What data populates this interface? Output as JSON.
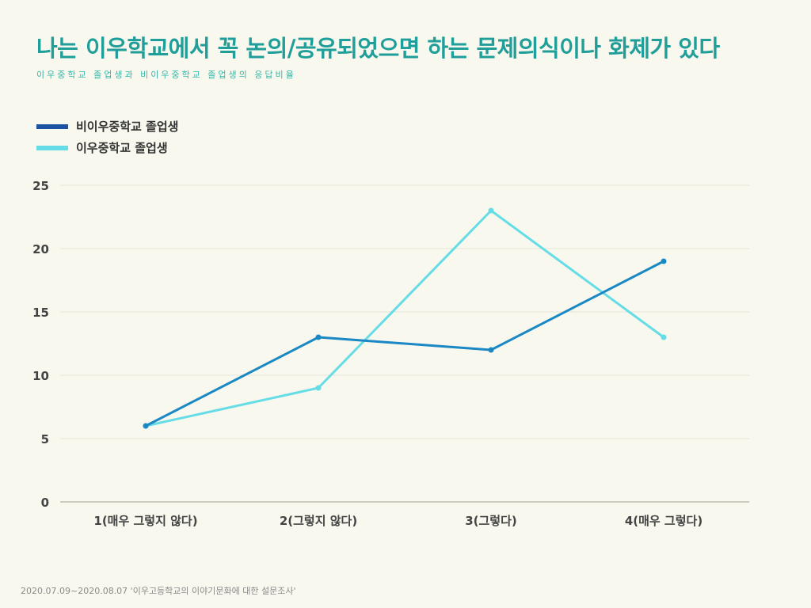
{
  "title": "나는 이우학교에서 꼭 논의/공유되었으면 하는 문제의식이나 화제가 있다",
  "subtitle": "이우중학교 졸업생과 비이우중학교 졸업생의 응답비율",
  "footer": "2020.07.09~2020.08.07 '이우고등학교의 이야기문화에 대한 설문조사'",
  "colors": {
    "background": "#f8f8ee",
    "title": "#1f9e9a",
    "series_non_iwoo": "#1a88c4",
    "series_iwoo": "#66dde6",
    "legend_non_iwoo": "#1b52a4",
    "legend_iwoo": "#66dde6",
    "grid": "#e4e4d8",
    "axis": "#bdbdb0"
  },
  "chart_data": {
    "type": "line",
    "title": "나는 이우학교에서 꼭 논의/공유되었으면 하는 문제의식이나 화제가 있다",
    "subtitle": "이우중학교 졸업생과 비이우중학교 졸업생의 응답비율",
    "categories": [
      "1(매우 그렇지 않다)",
      "2(그렇지 않다)",
      "3(그렇다)",
      "4(매우 그렇다)"
    ],
    "series": [
      {
        "name": "비이우중학교 졸업생",
        "values": [
          6,
          13,
          12,
          19
        ]
      },
      {
        "name": "이우중학교 졸업생",
        "values": [
          6,
          9,
          23,
          13
        ]
      }
    ],
    "ylim": [
      0,
      25
    ],
    "yticks": [
      0,
      5,
      10,
      15,
      20,
      25
    ],
    "grid": true,
    "legend": "top-left",
    "xlabel": "",
    "ylabel": ""
  }
}
